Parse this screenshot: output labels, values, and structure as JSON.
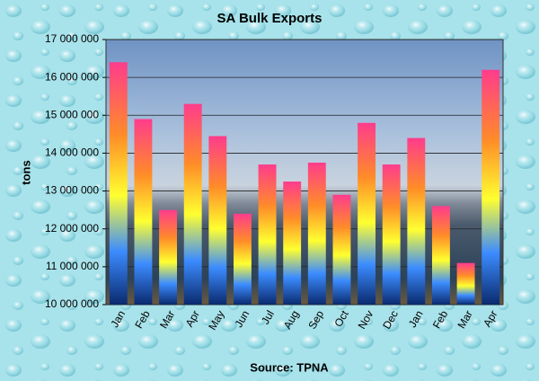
{
  "chart_data": {
    "type": "bar",
    "title": "SA Bulk Exports",
    "y_label": "tons",
    "x_label": "Source: TPNA",
    "categories": [
      "Jan",
      "Feb",
      "Mar",
      "Apr",
      "May",
      "Jun",
      "Jul",
      "Aug",
      "Sep",
      "Oct",
      "Nov",
      "Dec",
      "Jan",
      "Feb",
      "Mar",
      "Apr"
    ],
    "values": [
      16400000,
      14900000,
      12500000,
      15300000,
      14450000,
      12400000,
      13700000,
      13250000,
      13750000,
      12900000,
      14800000,
      13700000,
      14400000,
      12600000,
      11100000,
      16200000
    ],
    "colors": [
      "#ff3c8c",
      "#ff8c28",
      "#ffff30",
      "#3c8cff",
      "#0a2a6e"
    ],
    "ylim": [
      10000000,
      17000000
    ],
    "yticks": [
      {
        "value": 10000000,
        "label": "10 000 000"
      },
      {
        "value": 11000000,
        "label": "11 000 000"
      },
      {
        "value": 12000000,
        "label": "12 000 000"
      },
      {
        "value": 13000000,
        "label": "13 000 000"
      },
      {
        "value": 14000000,
        "label": "14 000 000"
      },
      {
        "value": 15000000,
        "label": "15 000 000"
      },
      {
        "value": 16000000,
        "label": "16 000 000"
      },
      {
        "value": 17000000,
        "label": "17 000 000"
      }
    ],
    "grid": true
  }
}
